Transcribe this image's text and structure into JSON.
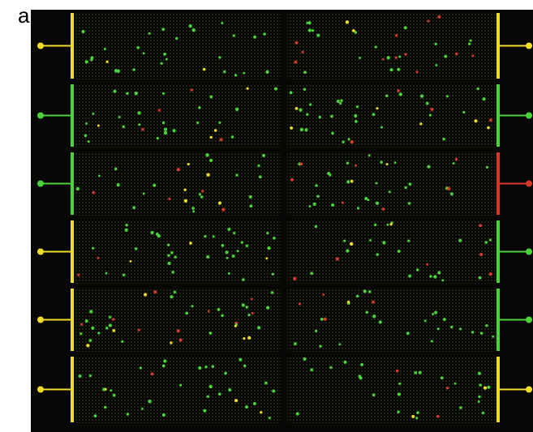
{
  "figure": {
    "panel_label": "a"
  },
  "scan": {
    "background": "#070806",
    "grid_dot_color": "#2a3a12",
    "spot_colors": {
      "green": "#4bd33c",
      "red": "#d4392a",
      "yellow": "#f0dc2a"
    },
    "blocks": [
      {
        "row": 1,
        "col": 1,
        "left_marker": "yellow",
        "right_marker": "yellow"
      },
      {
        "row": 1,
        "col": 2
      },
      {
        "row": 2,
        "col": 1,
        "left_marker": "green",
        "right_marker": "green"
      },
      {
        "row": 2,
        "col": 2
      },
      {
        "row": 3,
        "col": 1,
        "left_marker": "green",
        "right_marker": "red"
      },
      {
        "row": 3,
        "col": 2
      },
      {
        "row": 4,
        "col": 1,
        "left_marker": "yellow",
        "right_marker": "green"
      },
      {
        "row": 4,
        "col": 2
      },
      {
        "row": 5,
        "col": 1,
        "left_marker": "yellow",
        "right_marker": "green"
      },
      {
        "row": 5,
        "col": 2
      },
      {
        "row": 6,
        "col": 1,
        "left_marker": "yellow",
        "right_marker": "yellow"
      },
      {
        "row": 6,
        "col": 2
      }
    ]
  }
}
